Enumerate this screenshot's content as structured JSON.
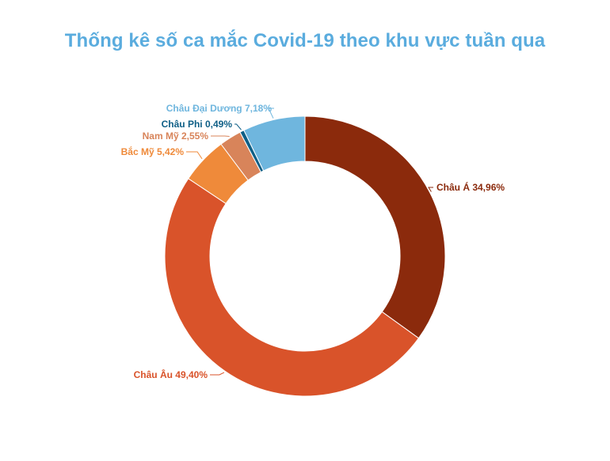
{
  "chart_data": {
    "type": "pie",
    "style": "donut",
    "title": "Thống kê số ca mắc Covid-19 theo khu vực tuần qua",
    "slices": [
      {
        "label": "Châu Á 34,96%",
        "value": 34.96,
        "color": "#8b2a0c"
      },
      {
        "label": "Châu Âu 49,40%",
        "value": 49.4,
        "color": "#d9532a"
      },
      {
        "label": "Bắc Mỹ 5,42%",
        "value": 5.42,
        "color": "#ef8a3a"
      },
      {
        "label": "Nam Mỹ 2,55%",
        "value": 2.55,
        "color": "#d8845a"
      },
      {
        "label": "Châu Phi  0,49%",
        "value": 0.49,
        "color": "#0f5f86"
      },
      {
        "label": "Châu Đại Dương 7,18%",
        "value": 7.18,
        "color": "#6fb6de"
      }
    ]
  }
}
